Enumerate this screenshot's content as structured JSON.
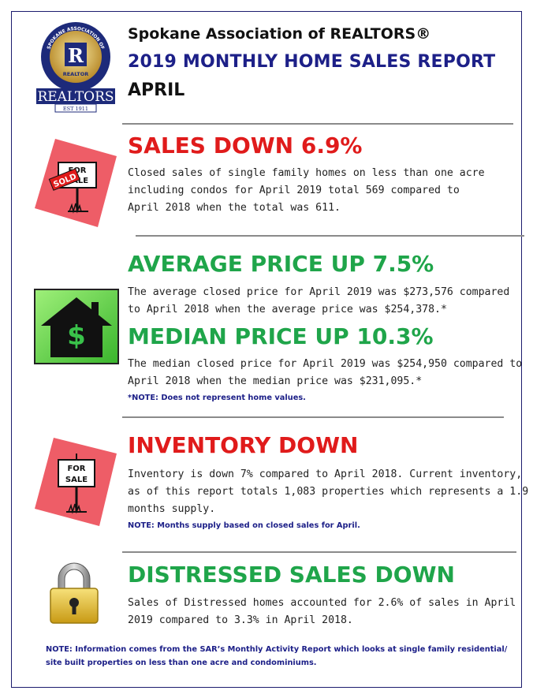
{
  "header": {
    "line1": "Spokane Association of REALTORS®",
    "line2": "2019 MONTHLY HOME SALES REPORT",
    "line3": "APRIL",
    "logo": {
      "ring_text": "SPOKANE ASSOCIATION OF",
      "letter": "R",
      "badge_text": "REALTOR",
      "wordmark": "REALTORS",
      "est": "EST 1911"
    }
  },
  "sections": {
    "sales": {
      "icon": "for-sale-sold-sign-icon",
      "title": "SALES DOWN 6.9%",
      "lines": [
        "Closed sales of single family homes on less than one acre",
        "including condos for April 2019 total 569 compared to",
        "April 2018 when the total was 611."
      ],
      "sign_top": "FOR",
      "sign_mid": "SALE",
      "sign_overlay": "SOLD"
    },
    "average": {
      "icon": "house-dollar-icon",
      "title": "AVERAGE PRICE UP 7.5%",
      "lines": [
        "The average closed price for April 2019 was $273,576 compared",
        "to April 2018 when the average price was $254,378.*"
      ],
      "icon_glyph": "$"
    },
    "median": {
      "title": "MEDIAN PRICE UP 10.3%",
      "lines": [
        "The median closed price for April 2019 was $254,950 compared to",
        "April 2018 when the median price was $231,095.*"
      ],
      "note": "*NOTE:  Does not represent home values."
    },
    "inventory": {
      "icon": "for-sale-sign-icon",
      "title": "INVENTORY DOWN",
      "lines": [
        "Inventory is down 7% compared to April 2018. Current inventory,",
        "as of this report totals 1,083 properties which represents a 1.9",
        "months supply."
      ],
      "note": "NOTE:  Months supply based on closed sales for April.",
      "sign_top": "FOR",
      "sign_mid": "SALE"
    },
    "distressed": {
      "icon": "padlock-icon",
      "title": "DISTRESSED SALES DOWN",
      "lines": [
        "Sales of Distressed homes accounted for 2.6% of sales in April",
        "2019 compared to 3.3% in April 2018."
      ]
    }
  },
  "footer": {
    "lines": [
      "NOTE:  Information comes from the SAR’s Monthly Activity Report which looks at single family residential/",
      "site built properties on less than one acre and condominiums."
    ]
  },
  "colors": {
    "navy": "#1d2088",
    "red": "#e01b1b",
    "green": "#1fa54a",
    "sign_pink": "#ee5d67",
    "lock_gold": "#e7c52d"
  }
}
